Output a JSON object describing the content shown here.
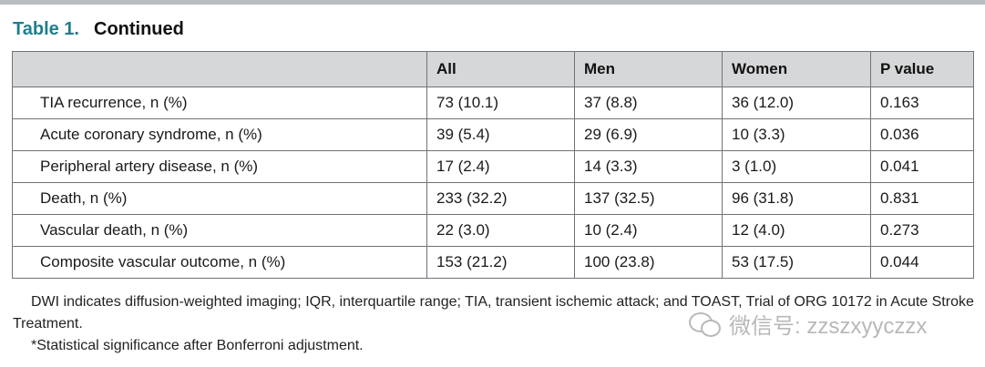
{
  "caption": {
    "label": "Table 1.",
    "title": "Continued"
  },
  "table": {
    "headers": [
      "",
      "All",
      "Men",
      "Women",
      "P value"
    ],
    "rows": [
      [
        "TIA recurrence, n (%)",
        "73 (10.1)",
        "37 (8.8)",
        "36 (12.0)",
        "0.163"
      ],
      [
        "Acute coronary syndrome, n (%)",
        "39 (5.4)",
        "29 (6.9)",
        "10 (3.3)",
        "0.036"
      ],
      [
        "Peripheral artery disease, n (%)",
        "17 (2.4)",
        "14 (3.3)",
        "3 (1.0)",
        "0.041"
      ],
      [
        "Death, n (%)",
        "233 (32.2)",
        "137 (32.5)",
        "96 (31.8)",
        "0.831"
      ],
      [
        "Vascular death, n (%)",
        "22 (3.0)",
        "10 (2.4)",
        "12 (4.0)",
        "0.273"
      ],
      [
        "Composite vascular outcome, n (%)",
        "153 (21.2)",
        "100 (23.8)",
        "53 (17.5)",
        "0.044"
      ]
    ]
  },
  "footnotes": {
    "abbreviations": "DWI indicates diffusion-weighted imaging; IQR, interquartile range; TIA, transient ischemic attack; and TOAST, Trial of ORG 10172 in Acute Stroke Treatment.",
    "significance": "*Statistical significance after Bonferroni adjustment."
  },
  "watermark": {
    "text": "微信号: zzszxyyczzx",
    "icon": "wechat-icon"
  },
  "colors": {
    "caption_label": "#1e7f8c",
    "header_bg": "#d6d7d9",
    "top_rule": "#b9bcc0"
  }
}
